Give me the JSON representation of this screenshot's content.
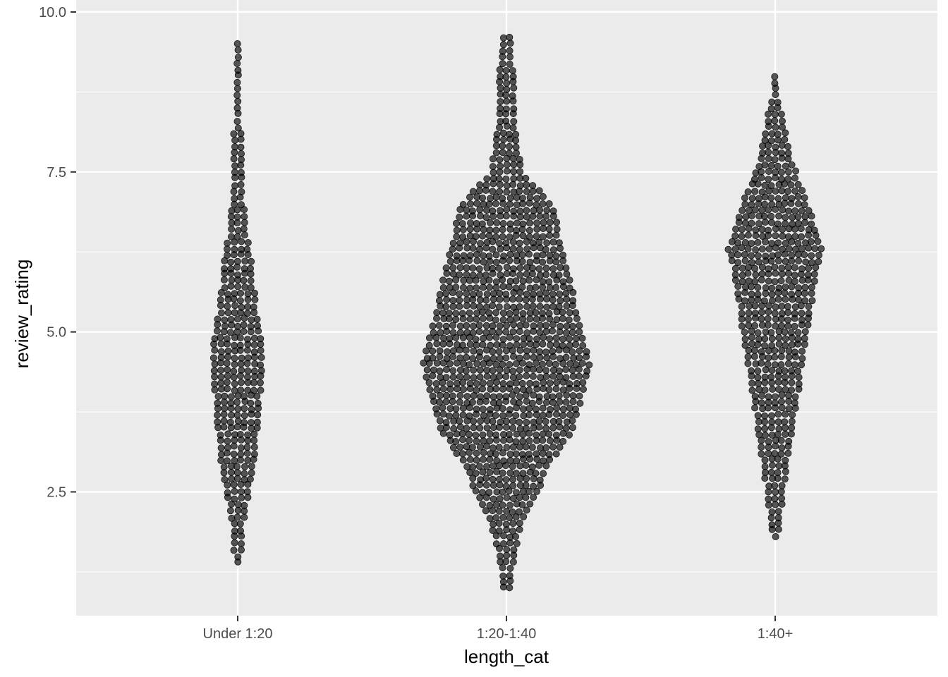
{
  "chart_data": {
    "type": "scatter",
    "subtype": "beeswarm",
    "title": "",
    "xlabel": "length_cat",
    "ylabel": "review_rating",
    "categories": [
      "Under 1:20",
      "1:20-1:40",
      "1:40+"
    ],
    "ylim": [
      1.0,
      9.6
    ],
    "yticks": [
      "2.5",
      "5.0",
      "7.5",
      "10.0"
    ],
    "ytick_values": [
      2.5,
      5.0,
      7.5,
      10.0
    ],
    "grid": true,
    "legend": "none",
    "colors": {
      "panel": "#ebebeb",
      "grid": "#ffffff",
      "point": "#000000",
      "point_alpha": 0.65
    },
    "groups": [
      {
        "category": "Under 1:20",
        "n_points": 330,
        "min": 1.4,
        "max": 9.5,
        "center": 4.5,
        "density_profile": [
          [
            1.4,
            1
          ],
          [
            1.6,
            2
          ],
          [
            2.0,
            3
          ],
          [
            2.5,
            5
          ],
          [
            3.0,
            7
          ],
          [
            3.5,
            8
          ],
          [
            4.0,
            9
          ],
          [
            4.5,
            10
          ],
          [
            5.0,
            9
          ],
          [
            5.5,
            7
          ],
          [
            6.0,
            6
          ],
          [
            6.5,
            4
          ],
          [
            7.0,
            3
          ],
          [
            7.5,
            3
          ],
          [
            8.0,
            2
          ],
          [
            8.5,
            1.5
          ],
          [
            9.0,
            1
          ],
          [
            9.5,
            1
          ]
        ]
      },
      {
        "category": "1:20-1:40",
        "n_points": 1400,
        "min": 1.0,
        "max": 9.6,
        "center": 4.7,
        "density_profile": [
          [
            1.0,
            0.5
          ],
          [
            1.5,
            1
          ],
          [
            2.0,
            2
          ],
          [
            2.5,
            4
          ],
          [
            3.0,
            6
          ],
          [
            3.5,
            9
          ],
          [
            4.0,
            10
          ],
          [
            4.5,
            11
          ],
          [
            5.0,
            10
          ],
          [
            5.5,
            9
          ],
          [
            6.0,
            8
          ],
          [
            6.5,
            7
          ],
          [
            7.0,
            6
          ],
          [
            7.5,
            2
          ],
          [
            8.0,
            1.5
          ],
          [
            8.5,
            1
          ],
          [
            9.0,
            1
          ],
          [
            9.6,
            0.5
          ]
        ]
      },
      {
        "category": "1:40+",
        "n_points": 520,
        "min": 1.8,
        "max": 9.0,
        "center": 6.2,
        "density_profile": [
          [
            1.8,
            1
          ],
          [
            2.5,
            2
          ],
          [
            3.0,
            3
          ],
          [
            3.5,
            4
          ],
          [
            4.0,
            5
          ],
          [
            4.5,
            6
          ],
          [
            5.0,
            7
          ],
          [
            5.5,
            8
          ],
          [
            6.0,
            9
          ],
          [
            6.3,
            10
          ],
          [
            6.8,
            8
          ],
          [
            7.2,
            6
          ],
          [
            7.6,
            4
          ],
          [
            8.0,
            3
          ],
          [
            8.3,
            2
          ],
          [
            8.7,
            1
          ],
          [
            9.0,
            0.5
          ]
        ]
      }
    ]
  }
}
